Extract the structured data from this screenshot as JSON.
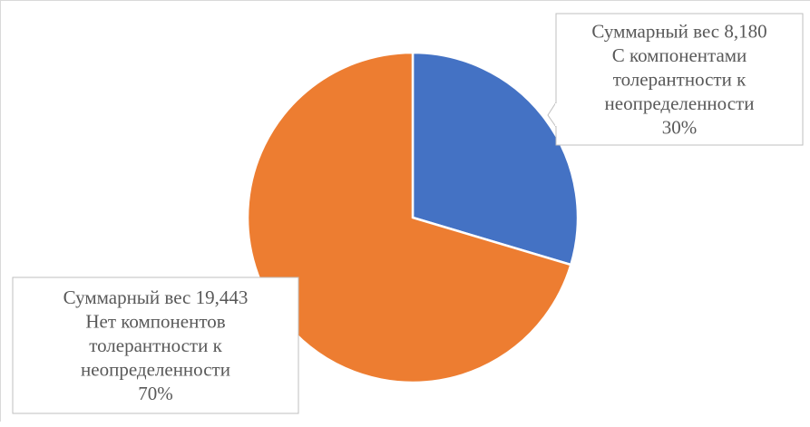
{
  "chart_data": {
    "type": "pie",
    "title": "",
    "slices": [
      {
        "value": 8.18,
        "percent": 30,
        "color": "#4472c4",
        "label_lines": [
          "Суммарный вес 8,180",
          "С компонентами",
          "толерантности к",
          "неопределенности",
          "30%"
        ]
      },
      {
        "value": 19.443,
        "percent": 70,
        "color": "#ed7d31",
        "label_lines": [
          "Суммарный вес 19,443",
          "Нет компонентов",
          "толерантности к",
          "неопределенности",
          "70%"
        ]
      }
    ],
    "legend": false
  }
}
